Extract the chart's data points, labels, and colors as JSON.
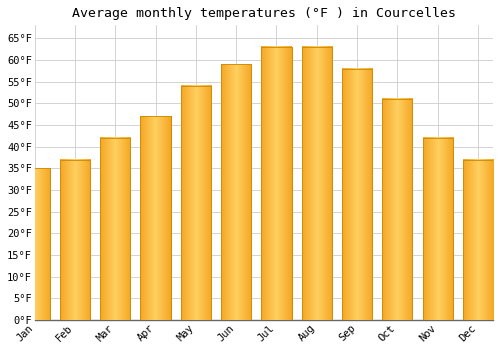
{
  "title": "Average monthly temperatures (°F ) in Courcelles",
  "months": [
    "Jan",
    "Feb",
    "Mar",
    "Apr",
    "May",
    "Jun",
    "Jul",
    "Aug",
    "Sep",
    "Oct",
    "Nov",
    "Dec"
  ],
  "values": [
    35,
    37,
    42,
    47,
    54,
    59,
    63,
    63,
    58,
    51,
    42,
    37
  ],
  "bar_color_left": "#F5A623",
  "bar_color_center": "#FFD060",
  "bar_color_right": "#F5A623",
  "bar_edge_color": "#CC8800",
  "ylim": [
    0,
    68
  ],
  "yticks": [
    0,
    5,
    10,
    15,
    20,
    25,
    30,
    35,
    40,
    45,
    50,
    55,
    60,
    65
  ],
  "ylabel_suffix": "°F",
  "background_color": "#FFFFFF",
  "grid_color": "#CCCCCC",
  "title_fontsize": 9.5,
  "tick_fontsize": 7.5,
  "font_family": "monospace",
  "bar_width": 0.75
}
